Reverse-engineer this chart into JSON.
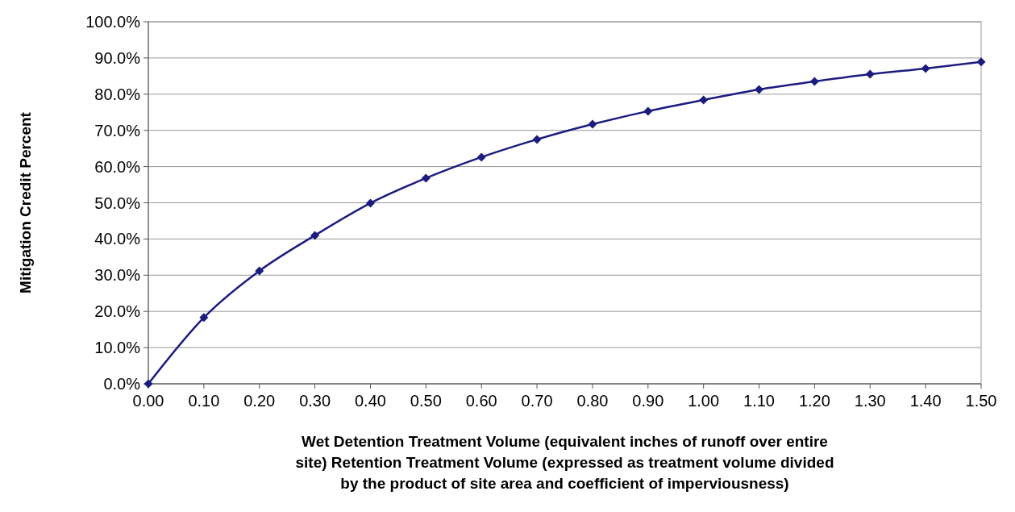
{
  "chart_data": {
    "type": "line",
    "xlabel": "Wet Detention Treatment Volume (equivalent inches of runoff over entire site) Retention Treatment Volume (expressed as treatment volume divided by the product of site area and coefficient of imperviousness)",
    "ylabel": "Mitigation Credit Percent",
    "x": [
      0,
      0.1,
      0.2,
      0.3,
      0.4,
      0.5,
      0.6,
      0.7,
      0.8,
      0.9,
      1.0,
      1.1,
      1.2,
      1.3,
      1.4,
      1.5
    ],
    "series": [
      {
        "color": "#1c1c80",
        "values": [
          0,
          18.3,
          31.2,
          41.0,
          49.9,
          56.8,
          62.6,
          67.5,
          71.7,
          75.3,
          78.4,
          81.3,
          83.5,
          85.5,
          87.1,
          88.9
        ]
      }
    ],
    "xlim": [
      0,
      1.5
    ],
    "xticks": [
      {
        "value": 0,
        "label": "0.00"
      },
      {
        "value": 0.1,
        "label": "0.10"
      },
      {
        "value": 0.2,
        "label": "0.20"
      },
      {
        "value": 0.3,
        "label": "0.30"
      },
      {
        "value": 0.4,
        "label": "0.40"
      },
      {
        "value": 0.5,
        "label": "0.50"
      },
      {
        "value": 0.6,
        "label": "0.60"
      },
      {
        "value": 0.7,
        "label": "0.70"
      },
      {
        "value": 0.8,
        "label": "0.80"
      },
      {
        "value": 0.9,
        "label": "0.90"
      },
      {
        "value": 1.0,
        "label": "1.00"
      },
      {
        "value": 1.1,
        "label": "1.10"
      },
      {
        "value": 1.2,
        "label": "1.20"
      },
      {
        "value": 1.3,
        "label": "1.30"
      },
      {
        "value": 1.4,
        "label": "1.40"
      },
      {
        "value": 1.5,
        "label": "1.50"
      }
    ],
    "ylim": [
      0,
      100
    ],
    "yticks": [
      {
        "value": 0,
        "label": "0.0%"
      },
      {
        "value": 10,
        "label": "10.0%"
      },
      {
        "value": 20,
        "label": "20.0%"
      },
      {
        "value": 30,
        "label": "30.0%"
      },
      {
        "value": 40,
        "label": "40.0%"
      },
      {
        "value": 50,
        "label": "50.0%"
      },
      {
        "value": 60,
        "label": "60.0%"
      },
      {
        "value": 70,
        "label": "70.0%"
      },
      {
        "value": 80,
        "label": "80.0%"
      },
      {
        "value": 90,
        "label": "90.0%"
      },
      {
        "value": 100,
        "label": "100.0%"
      }
    ],
    "grid": "y",
    "marker": "diamond",
    "line_style": "solid"
  }
}
